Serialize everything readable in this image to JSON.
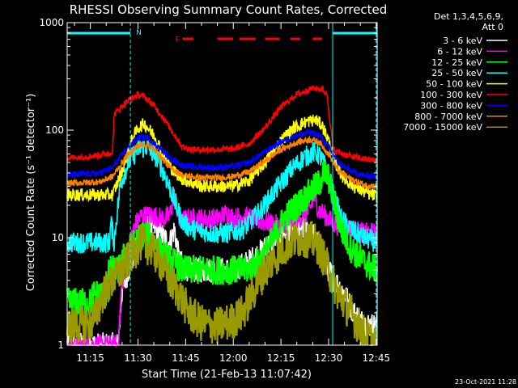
{
  "chart_data": {
    "type": "line",
    "title": "RHESSI Observing Summary Count Rates, Corrected",
    "xlabel": "Start Time (21-Feb-13 11:07:42)",
    "ylabel": "Corrected Count Rate (s⁻¹ detector⁻¹)",
    "ylog": true,
    "xlim_minutes": [
      7.7,
      105.3
    ],
    "ylim": [
      1,
      1000
    ],
    "x_ticks": [
      {
        "minute": 15,
        "label": "11:15"
      },
      {
        "minute": 30,
        "label": "11:30"
      },
      {
        "minute": 45,
        "label": "11:45"
      },
      {
        "minute": 60,
        "label": "12:00"
      },
      {
        "minute": 75,
        "label": "12:15"
      },
      {
        "minute": 90,
        "label": "12:30"
      },
      {
        "minute": 105,
        "label": "12:45"
      }
    ],
    "y_ticks": [
      {
        "value": 1,
        "label": "1"
      },
      {
        "value": 10,
        "label": "10"
      },
      {
        "value": 100,
        "label": "100"
      },
      {
        "value": 1000,
        "label": "1000"
      }
    ],
    "legend_header": [
      "Det 1,3,4,5,6,9,",
      "Att 0"
    ],
    "legend_position": "right",
    "flags": {
      "night_label": "N",
      "flare_label": "F",
      "night_color": "#00ffff",
      "flare_color": "#ff0000",
      "night_intervals": [
        [
          7.7,
          27.6
        ],
        [
          91.3,
          105.3
        ]
      ],
      "flare_intervals": [
        [
          44.0,
          47.5
        ],
        [
          55.0,
          60.0
        ],
        [
          62.0,
          67.0
        ],
        [
          70.0,
          74.5
        ],
        [
          78.0,
          81.0
        ],
        [
          85.0,
          88.0
        ]
      ],
      "boundaries": [
        27.6,
        91.3,
        105.0
      ]
    },
    "series": [
      {
        "name": "3 - 6 keV",
        "color": "#ffffff",
        "noise": 0.12,
        "points": [
          [
            7.7,
            1
          ],
          [
            23.8,
            1
          ],
          [
            24.8,
            3
          ],
          [
            27,
            5
          ],
          [
            30,
            9
          ],
          [
            33,
            13
          ],
          [
            36,
            12
          ],
          [
            38,
            10
          ],
          [
            40,
            9
          ],
          [
            41.5,
            12
          ],
          [
            43,
            6
          ],
          [
            46,
            5
          ],
          [
            50,
            5
          ],
          [
            55,
            5
          ],
          [
            60,
            5
          ],
          [
            65,
            6
          ],
          [
            70,
            8
          ],
          [
            75,
            11
          ],
          [
            80,
            12
          ],
          [
            84,
            12
          ],
          [
            86,
            10
          ],
          [
            88,
            7
          ],
          [
            90,
            5
          ],
          [
            92,
            4
          ],
          [
            95,
            3
          ],
          [
            98,
            2
          ],
          [
            101,
            1.6
          ],
          [
            105.3,
            1.5
          ]
        ]
      },
      {
        "name": "6 - 12 keV",
        "color": "#ff00ff",
        "noise": 0.1,
        "points": [
          [
            7.7,
            1
          ],
          [
            23.8,
            1
          ],
          [
            24.8,
            3.5
          ],
          [
            27,
            8
          ],
          [
            29,
            13
          ],
          [
            31,
            16
          ],
          [
            35,
            16
          ],
          [
            38,
            15
          ],
          [
            40,
            16
          ],
          [
            41.5,
            25
          ],
          [
            43,
            14
          ],
          [
            46,
            15
          ],
          [
            50,
            15
          ],
          [
            55,
            15
          ],
          [
            58,
            17
          ],
          [
            60,
            15
          ],
          [
            63,
            16
          ],
          [
            66,
            15
          ],
          [
            70,
            14
          ],
          [
            74,
            13
          ],
          [
            78,
            14
          ],
          [
            82,
            16
          ],
          [
            84,
            18
          ],
          [
            85.5,
            24
          ],
          [
            87,
            18
          ],
          [
            89,
            16
          ],
          [
            91,
            14
          ],
          [
            93,
            13
          ],
          [
            97,
            12
          ],
          [
            101,
            11
          ],
          [
            105.3,
            11
          ]
        ]
      },
      {
        "name": "12 - 25 keV",
        "color": "#00ff00",
        "noise": 0.14,
        "points": [
          [
            7.7,
            2.5
          ],
          [
            15,
            2.5
          ],
          [
            16,
            3
          ],
          [
            20,
            3
          ],
          [
            21,
            5
          ],
          [
            24,
            5
          ],
          [
            26,
            7
          ],
          [
            29,
            9
          ],
          [
            32,
            11
          ],
          [
            35,
            9
          ],
          [
            38,
            7
          ],
          [
            41,
            6
          ],
          [
            44,
            5
          ],
          [
            50,
            5
          ],
          [
            55,
            5
          ],
          [
            60,
            5
          ],
          [
            64,
            5
          ],
          [
            68,
            6
          ],
          [
            72,
            9
          ],
          [
            76,
            15
          ],
          [
            80,
            20
          ],
          [
            84,
            26
          ],
          [
            87,
            32
          ],
          [
            88.5,
            40
          ],
          [
            90,
            36
          ],
          [
            92,
            20
          ],
          [
            94,
            12
          ],
          [
            97,
            8
          ],
          [
            101,
            6
          ],
          [
            105.3,
            5
          ]
        ]
      },
      {
        "name": "25 - 50 keV",
        "color": "#00ffff",
        "noise": 0.1,
        "points": [
          [
            7.7,
            9
          ],
          [
            21,
            9
          ],
          [
            21.5,
            14
          ],
          [
            22.5,
            9
          ],
          [
            23.3,
            16
          ],
          [
            24.5,
            32
          ],
          [
            27,
            50
          ],
          [
            30,
            67
          ],
          [
            33,
            70
          ],
          [
            36,
            55
          ],
          [
            39,
            35
          ],
          [
            42,
            20
          ],
          [
            44,
            14
          ],
          [
            47,
            12
          ],
          [
            53,
            11
          ],
          [
            58,
            11
          ],
          [
            63,
            12
          ],
          [
            68,
            17
          ],
          [
            73,
            27
          ],
          [
            78,
            42
          ],
          [
            82,
            55
          ],
          [
            85,
            62
          ],
          [
            87,
            60
          ],
          [
            89,
            45
          ],
          [
            91,
            28
          ],
          [
            94,
            15
          ],
          [
            97,
            12
          ],
          [
            101,
            10
          ],
          [
            105.3,
            9
          ]
        ]
      },
      {
        "name": "50 - 100 keV",
        "color": "#ffff00",
        "noise": 0.06,
        "points": [
          [
            7.7,
            25
          ],
          [
            22,
            25
          ],
          [
            25,
            42
          ],
          [
            28,
            80
          ],
          [
            30,
            105
          ],
          [
            32,
            115
          ],
          [
            35,
            90
          ],
          [
            38,
            60
          ],
          [
            41,
            42
          ],
          [
            44,
            35
          ],
          [
            50,
            30
          ],
          [
            55,
            30
          ],
          [
            60,
            30
          ],
          [
            65,
            34
          ],
          [
            70,
            50
          ],
          [
            75,
            80
          ],
          [
            79,
            105
          ],
          [
            83,
            120
          ],
          [
            86,
            125
          ],
          [
            88,
            110
          ],
          [
            90,
            80
          ],
          [
            92,
            50
          ],
          [
            95,
            35
          ],
          [
            98,
            30
          ],
          [
            102,
            26
          ],
          [
            105.3,
            24
          ]
        ]
      },
      {
        "name": "100 - 300 keV",
        "color": "#ff0000",
        "noise": 0.03,
        "points": [
          [
            7.7,
            55
          ],
          [
            17,
            58
          ],
          [
            22,
            62
          ],
          [
            22.5,
            140
          ],
          [
            26,
            180
          ],
          [
            30,
            215
          ],
          [
            32,
            205
          ],
          [
            35,
            170
          ],
          [
            38,
            130
          ],
          [
            41,
            95
          ],
          [
            44,
            70
          ],
          [
            47,
            66
          ],
          [
            55,
            66
          ],
          [
            60,
            67
          ],
          [
            65,
            75
          ],
          [
            70,
            105
          ],
          [
            75,
            165
          ],
          [
            80,
            215
          ],
          [
            85,
            245
          ],
          [
            88,
            240
          ],
          [
            89.5,
            215
          ],
          [
            90,
            160
          ],
          [
            91.5,
            65
          ],
          [
            96,
            58
          ],
          [
            101,
            54
          ],
          [
            105.3,
            52
          ]
        ]
      },
      {
        "name": "300 - 800 keV",
        "color": "#0000ff",
        "noise": 0.03,
        "points": [
          [
            7.7,
            38
          ],
          [
            18,
            40
          ],
          [
            22,
            45
          ],
          [
            26,
            65
          ],
          [
            30,
            85
          ],
          [
            33,
            85
          ],
          [
            36,
            72
          ],
          [
            40,
            55
          ],
          [
            44,
            47
          ],
          [
            50,
            45
          ],
          [
            55,
            45
          ],
          [
            60,
            46
          ],
          [
            65,
            50
          ],
          [
            70,
            63
          ],
          [
            75,
            78
          ],
          [
            80,
            90
          ],
          [
            84,
            95
          ],
          [
            87,
            90
          ],
          [
            90,
            70
          ],
          [
            93,
            50
          ],
          [
            97,
            42
          ],
          [
            101,
            38
          ],
          [
            105.3,
            37
          ]
        ]
      },
      {
        "name": "800 - 7000 keV",
        "color": "#ff8000",
        "noise": 0.03,
        "points": [
          [
            7.7,
            32
          ],
          [
            18,
            33
          ],
          [
            22,
            37
          ],
          [
            26,
            55
          ],
          [
            30,
            72
          ],
          [
            33,
            74
          ],
          [
            36,
            62
          ],
          [
            40,
            45
          ],
          [
            44,
            38
          ],
          [
            50,
            36
          ],
          [
            55,
            36
          ],
          [
            60,
            37
          ],
          [
            65,
            41
          ],
          [
            70,
            52
          ],
          [
            75,
            66
          ],
          [
            80,
            77
          ],
          [
            84,
            82
          ],
          [
            87,
            78
          ],
          [
            90,
            60
          ],
          [
            93,
            42
          ],
          [
            97,
            35
          ],
          [
            101,
            31
          ],
          [
            105.3,
            30
          ]
        ]
      },
      {
        "name": "7000 - 15000 keV",
        "color": "#999900",
        "noise": 0.18,
        "points": [
          [
            7.7,
            1.5
          ],
          [
            15,
            1.6
          ],
          [
            17,
            2
          ],
          [
            19,
            3
          ],
          [
            22,
            4
          ],
          [
            25,
            5
          ],
          [
            28,
            7
          ],
          [
            31,
            9
          ],
          [
            34,
            8
          ],
          [
            37,
            6
          ],
          [
            40,
            4
          ],
          [
            43,
            3
          ],
          [
            46,
            2
          ],
          [
            50,
            1.6
          ],
          [
            55,
            1.5
          ],
          [
            60,
            1.7
          ],
          [
            63,
            2
          ],
          [
            66,
            3
          ],
          [
            70,
            5
          ],
          [
            74,
            7
          ],
          [
            78,
            9
          ],
          [
            82,
            10
          ],
          [
            86,
            9
          ],
          [
            88,
            7
          ],
          [
            90,
            5
          ],
          [
            93,
            3
          ],
          [
            96,
            2.2
          ],
          [
            99,
            1.6
          ],
          [
            102,
            1.2
          ],
          [
            105.3,
            1
          ]
        ]
      }
    ]
  },
  "footer": {
    "timestamp": "23-Oct-2021 11:28"
  }
}
